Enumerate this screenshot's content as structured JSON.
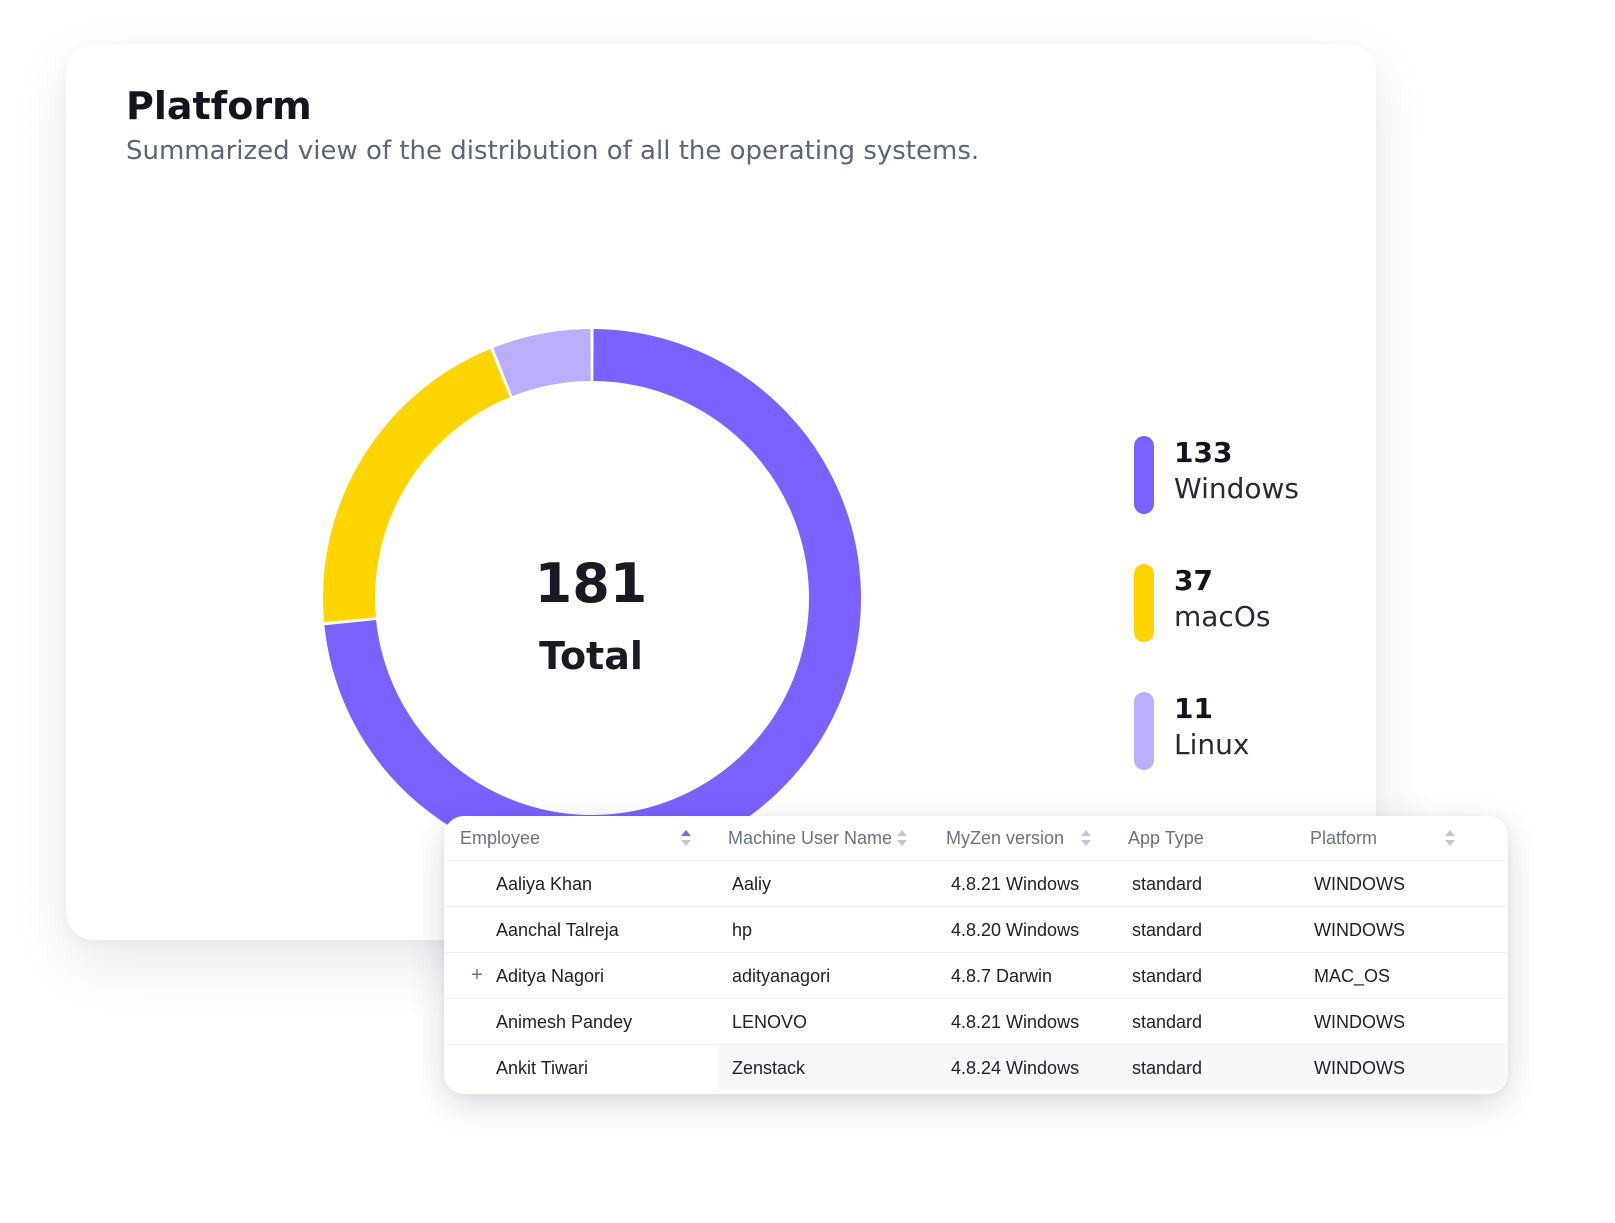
{
  "card": {
    "title": "Platform",
    "subtitle": "Summarized view of the distribution of all the operating systems."
  },
  "chart_data": {
    "type": "pie",
    "categories": [
      "Windows",
      "macOs",
      "Linux"
    ],
    "values": [
      133,
      37,
      11
    ],
    "colors": [
      "#7b61ff",
      "#ffd500",
      "#bcaeff"
    ],
    "total": 181,
    "total_label": "Total",
    "legend_position": "right"
  },
  "table": {
    "columns": [
      {
        "label": "Employee",
        "sortable": true,
        "sort_active": true
      },
      {
        "label": "Machine User Name",
        "sortable": true,
        "sort_active": false
      },
      {
        "label": "MyZen version",
        "sortable": true,
        "sort_active": false
      },
      {
        "label": "App Type",
        "sortable": false,
        "sort_active": false
      },
      {
        "label": "Platform",
        "sortable": true,
        "sort_active": false
      }
    ],
    "rows": [
      {
        "employee": "Aaliya Khan",
        "machine_user": "Aaliy",
        "version": "4.8.21 Windows",
        "app_type": "standard",
        "platform": "WINDOWS",
        "expandable": false
      },
      {
        "employee": "Aanchal Talreja",
        "machine_user": "hp",
        "version": "4.8.20 Windows",
        "app_type": "standard",
        "platform": "WINDOWS",
        "expandable": false
      },
      {
        "employee": "Aditya Nagori",
        "machine_user": "adityanagori",
        "version": "4.8.7 Darwin",
        "app_type": "standard",
        "platform": "MAC_OS",
        "expandable": true
      },
      {
        "employee": "Animesh Pandey",
        "machine_user": "LENOVO",
        "version": "4.8.21 Windows",
        "app_type": "standard",
        "platform": "WINDOWS",
        "expandable": false
      },
      {
        "employee": "Ankit Tiwari",
        "machine_user": "Zenstack",
        "version": "4.8.24 Windows",
        "app_type": "standard",
        "platform": "WINDOWS",
        "expandable": false
      }
    ]
  },
  "icons": {
    "sort": "sort-icon",
    "expand": "plus-icon"
  }
}
